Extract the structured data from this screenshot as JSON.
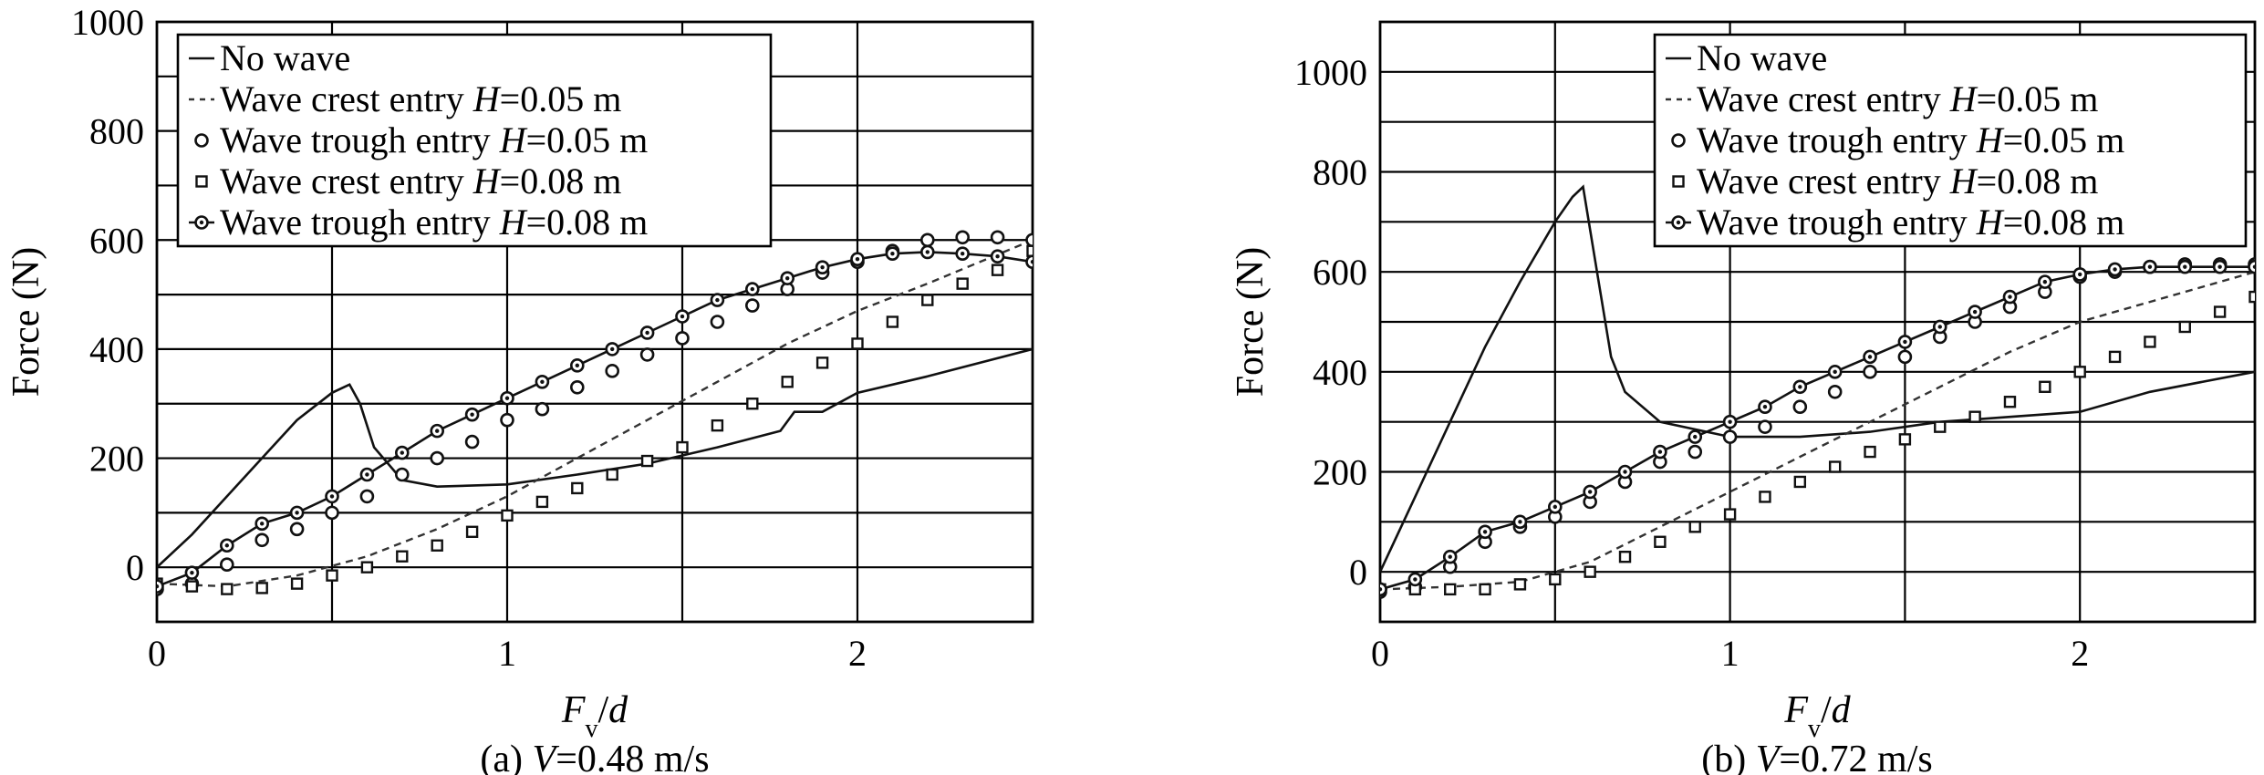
{
  "chart_data": [
    {
      "type": "line",
      "caption": "(a) V=0.48 m/s",
      "caption_parts": [
        "(a) ",
        "V",
        "=0.48 m/s"
      ],
      "xlabel": "Fv/d",
      "xlabel_parts": [
        "F",
        "v",
        "/",
        "d"
      ],
      "ylabel": "Force (N)",
      "xlim": [
        0,
        2.5
      ],
      "ylim": [
        -100,
        1000
      ],
      "xticks": [
        "0",
        "1",
        "2"
      ],
      "xtick_values": [
        0,
        1,
        2
      ],
      "yticks": [
        "0",
        "200",
        "400",
        "600",
        "800",
        "1000"
      ],
      "ytick_values": [
        0,
        200,
        400,
        600,
        800,
        1000
      ],
      "grid": true,
      "legend_position": "top-left",
      "series": [
        {
          "name": "No wave",
          "style": "solid",
          "x": [
            0,
            0.1,
            0.2,
            0.3,
            0.4,
            0.5,
            0.55,
            0.58,
            0.62,
            0.7,
            0.8,
            1.0,
            1.2,
            1.4,
            1.6,
            1.78,
            1.82,
            1.9,
            2.0,
            2.2,
            2.5
          ],
          "y": [
            0,
            60,
            130,
            200,
            270,
            320,
            335,
            300,
            220,
            160,
            148,
            152,
            170,
            190,
            220,
            250,
            285,
            285,
            320,
            350,
            400
          ]
        },
        {
          "name": "Wave crest entry H=0.05 m",
          "style": "dashed",
          "x": [
            0,
            0.2,
            0.4,
            0.6,
            0.8,
            1.0,
            1.2,
            1.4,
            1.6,
            1.8,
            2.0,
            2.2,
            2.5
          ],
          "y": [
            -30,
            -35,
            -15,
            20,
            70,
            130,
            200,
            270,
            340,
            410,
            470,
            520,
            600
          ]
        },
        {
          "name": "Wave trough entry H=0.05 m",
          "style": "circles",
          "x": [
            0,
            0.1,
            0.2,
            0.3,
            0.4,
            0.5,
            0.6,
            0.7,
            0.8,
            0.9,
            1.0,
            1.1,
            1.2,
            1.3,
            1.4,
            1.5,
            1.6,
            1.7,
            1.8,
            1.9,
            2.0,
            2.1,
            2.2,
            2.3,
            2.4,
            2.5
          ],
          "y": [
            -40,
            -30,
            5,
            50,
            70,
            100,
            130,
            170,
            200,
            230,
            270,
            290,
            330,
            360,
            390,
            420,
            450,
            480,
            510,
            540,
            560,
            580,
            600,
            605,
            605,
            600
          ]
        },
        {
          "name": "Wave crest entry H=0.08 m",
          "style": "squares",
          "x": [
            0,
            0.1,
            0.2,
            0.3,
            0.4,
            0.5,
            0.6,
            0.7,
            0.8,
            0.9,
            1.0,
            1.1,
            1.2,
            1.3,
            1.4,
            1.5,
            1.6,
            1.7,
            1.8,
            1.9,
            2.0,
            2.1,
            2.2,
            2.3,
            2.4,
            2.5
          ],
          "y": [
            -30,
            -35,
            -40,
            -38,
            -30,
            -15,
            0,
            20,
            40,
            65,
            95,
            120,
            145,
            170,
            195,
            220,
            260,
            300,
            340,
            375,
            410,
            450,
            490,
            520,
            545,
            580
          ]
        },
        {
          "name": "Wave trough entry H=0.08 m",
          "style": "line-circles",
          "x": [
            0,
            0.1,
            0.2,
            0.3,
            0.4,
            0.5,
            0.6,
            0.7,
            0.8,
            0.9,
            1.0,
            1.1,
            1.2,
            1.3,
            1.4,
            1.5,
            1.6,
            1.7,
            1.8,
            1.9,
            2.0,
            2.1,
            2.2,
            2.3,
            2.4,
            2.5
          ],
          "y": [
            -35,
            -10,
            40,
            80,
            100,
            130,
            170,
            210,
            250,
            280,
            310,
            340,
            370,
            400,
            430,
            460,
            490,
            510,
            530,
            550,
            565,
            575,
            578,
            575,
            570,
            560
          ]
        }
      ]
    },
    {
      "type": "line",
      "caption": "(b) V=0.72 m/s",
      "caption_parts": [
        "(b) ",
        "V",
        "=0.72 m/s"
      ],
      "xlabel": "Fv/d",
      "xlabel_parts": [
        "F",
        "v",
        "/",
        "d"
      ],
      "ylabel": "Force (N)",
      "xlim": [
        0,
        2.5
      ],
      "ylim": [
        -100,
        1100
      ],
      "xticks": [
        "0",
        "1",
        "2"
      ],
      "xtick_values": [
        0,
        1,
        2
      ],
      "yticks": [
        "0",
        "200",
        "400",
        "600",
        "800",
        "1000"
      ],
      "ytick_values": [
        0,
        200,
        400,
        600,
        800,
        1000
      ],
      "grid": true,
      "legend_position": "top-right",
      "series": [
        {
          "name": "No wave",
          "style": "solid",
          "x": [
            0,
            0.1,
            0.2,
            0.3,
            0.4,
            0.5,
            0.55,
            0.58,
            0.62,
            0.66,
            0.7,
            0.8,
            0.9,
            1.0,
            1.2,
            1.4,
            1.6,
            1.8,
            2.0,
            2.2,
            2.5
          ],
          "y": [
            0,
            150,
            300,
            450,
            580,
            700,
            750,
            770,
            600,
            430,
            360,
            300,
            285,
            270,
            270,
            280,
            300,
            310,
            320,
            360,
            400
          ]
        },
        {
          "name": "Wave crest entry H=0.05 m",
          "style": "dashed",
          "x": [
            0,
            0.2,
            0.4,
            0.6,
            0.8,
            1.0,
            1.2,
            1.4,
            1.6,
            1.8,
            2.0,
            2.2,
            2.5
          ],
          "y": [
            -35,
            -30,
            -20,
            20,
            90,
            160,
            230,
            300,
            370,
            440,
            500,
            540,
            600
          ]
        },
        {
          "name": "Wave trough entry H=0.05 m",
          "style": "circles",
          "x": [
            0,
            0.1,
            0.2,
            0.3,
            0.4,
            0.5,
            0.6,
            0.7,
            0.8,
            0.9,
            1.0,
            1.1,
            1.2,
            1.3,
            1.4,
            1.5,
            1.6,
            1.7,
            1.8,
            1.9,
            2.0,
            2.1,
            2.2,
            2.3,
            2.4,
            2.5
          ],
          "y": [
            -40,
            -30,
            10,
            60,
            90,
            110,
            140,
            180,
            220,
            240,
            270,
            290,
            330,
            360,
            400,
            430,
            470,
            500,
            530,
            560,
            590,
            600,
            610,
            615,
            615,
            615
          ]
        },
        {
          "name": "Wave crest entry H=0.08 m",
          "style": "squares",
          "x": [
            0,
            0.1,
            0.2,
            0.3,
            0.4,
            0.5,
            0.6,
            0.7,
            0.8,
            0.9,
            1.0,
            1.1,
            1.2,
            1.3,
            1.4,
            1.5,
            1.6,
            1.7,
            1.8,
            1.9,
            2.0,
            2.1,
            2.2,
            2.3,
            2.4,
            2.5
          ],
          "y": [
            -35,
            -35,
            -35,
            -35,
            -25,
            -15,
            0,
            30,
            60,
            90,
            115,
            150,
            180,
            210,
            240,
            265,
            290,
            310,
            340,
            370,
            400,
            430,
            460,
            490,
            520,
            550
          ]
        },
        {
          "name": "Wave trough entry H=0.08 m",
          "style": "line-circles",
          "x": [
            0,
            0.1,
            0.2,
            0.3,
            0.4,
            0.5,
            0.6,
            0.7,
            0.8,
            0.9,
            1.0,
            1.1,
            1.2,
            1.3,
            1.4,
            1.5,
            1.6,
            1.7,
            1.8,
            1.9,
            2.0,
            2.1,
            2.2,
            2.3,
            2.4,
            2.5
          ],
          "y": [
            -35,
            -15,
            30,
            80,
            100,
            130,
            160,
            200,
            240,
            270,
            300,
            330,
            370,
            400,
            430,
            460,
            490,
            520,
            550,
            580,
            595,
            605,
            610,
            610,
            610,
            610
          ]
        }
      ]
    }
  ]
}
